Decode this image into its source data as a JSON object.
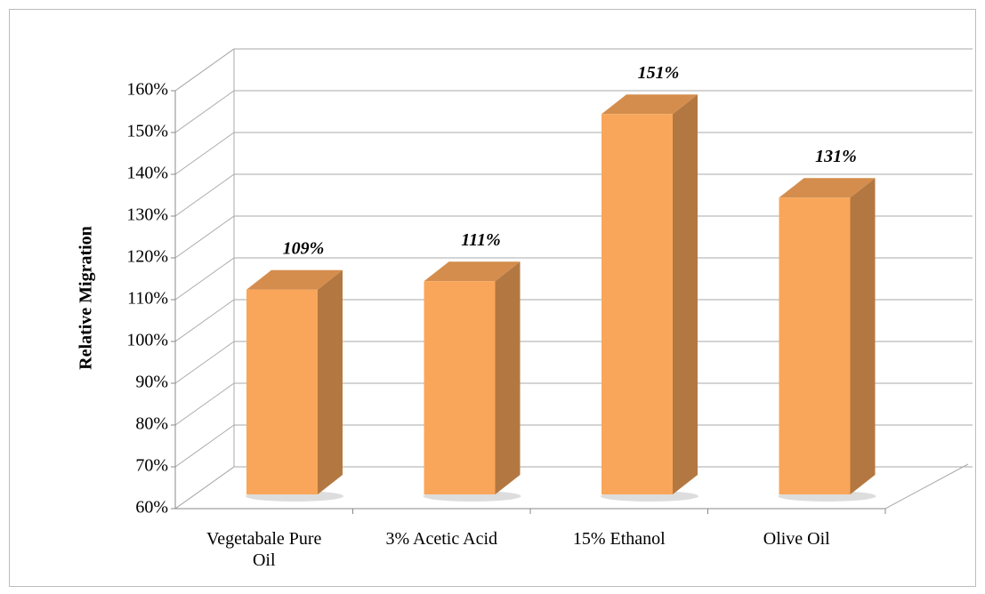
{
  "chart_data": {
    "type": "bar3d",
    "y_label": "Relative Migration",
    "categories": [
      "Vegetabale Pure Oil",
      "3% Acetic Acid",
      "15% Ethanol",
      "Olive Oil"
    ],
    "values": [
      109,
      111,
      151,
      131
    ],
    "value_labels": [
      "109%",
      "111%",
      "151%",
      "131%"
    ],
    "color": "#f9a65a",
    "ylim": [
      60,
      160
    ],
    "yticks": [
      {
        "value": 60,
        "label": "60%"
      },
      {
        "value": 70,
        "label": "70%"
      },
      {
        "value": 80,
        "label": "80%"
      },
      {
        "value": 90,
        "label": "90%"
      },
      {
        "value": 100,
        "label": "100%"
      },
      {
        "value": 110,
        "label": "110%"
      },
      {
        "value": 120,
        "label": "120%"
      },
      {
        "value": 130,
        "label": "130%"
      },
      {
        "value": 140,
        "label": "140%"
      },
      {
        "value": 150,
        "label": "150%"
      },
      {
        "value": 160,
        "label": "160%"
      }
    ],
    "grid": true
  }
}
